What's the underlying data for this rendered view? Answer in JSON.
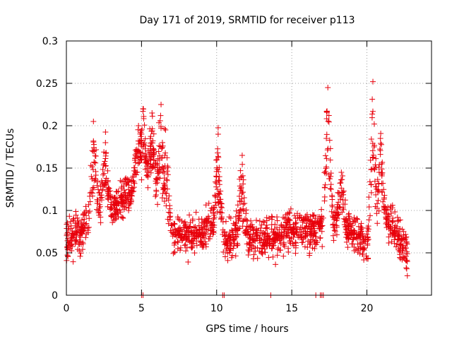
{
  "chart_data": {
    "type": "scatter",
    "title": "Day 171 of 2019, SRMTID for receiver p113",
    "xlabel": "GPS time / hours",
    "ylabel": "SRMTID / TECUs",
    "xlim": [
      0,
      24.3
    ],
    "ylim": [
      0,
      0.3
    ],
    "xticks": [
      0,
      5,
      10,
      15,
      20
    ],
    "xtick_labels": [
      "0",
      "5",
      "10",
      "15",
      "20"
    ],
    "yticks": [
      0,
      0.05,
      0.1,
      0.15,
      0.2,
      0.25,
      0.3
    ],
    "ytick_labels": [
      "0",
      "0.05",
      "0.1",
      "0.15",
      "0.2",
      "0.25",
      "0.3"
    ],
    "grid": true,
    "marker": "+",
    "color": "#e8000b",
    "series": [
      {
        "name": "SRMTID",
        "trend_points": [
          [
            0.0,
            0.065
          ],
          [
            0.5,
            0.07
          ],
          [
            1.0,
            0.075
          ],
          [
            1.5,
            0.085
          ],
          [
            2.0,
            0.1
          ],
          [
            2.5,
            0.11
          ],
          [
            3.0,
            0.1
          ],
          [
            3.5,
            0.11
          ],
          [
            4.0,
            0.12
          ],
          [
            4.5,
            0.13
          ],
          [
            5.0,
            0.13
          ],
          [
            5.5,
            0.14
          ],
          [
            6.0,
            0.12
          ],
          [
            6.5,
            0.08
          ],
          [
            7.0,
            0.075
          ],
          [
            7.5,
            0.07
          ],
          [
            8.0,
            0.07
          ],
          [
            8.5,
            0.075
          ],
          [
            9.0,
            0.07
          ],
          [
            9.5,
            0.085
          ],
          [
            10.0,
            0.08
          ],
          [
            10.5,
            0.07
          ],
          [
            11.0,
            0.065
          ],
          [
            11.5,
            0.07
          ],
          [
            12.0,
            0.07
          ],
          [
            12.5,
            0.065
          ],
          [
            13.0,
            0.065
          ],
          [
            13.5,
            0.07
          ],
          [
            14.0,
            0.07
          ],
          [
            14.5,
            0.075
          ],
          [
            15.0,
            0.075
          ],
          [
            15.5,
            0.08
          ],
          [
            16.0,
            0.075
          ],
          [
            16.5,
            0.075
          ],
          [
            17.0,
            0.085
          ],
          [
            17.5,
            0.09
          ],
          [
            18.0,
            0.085
          ],
          [
            18.5,
            0.08
          ],
          [
            19.0,
            0.075
          ],
          [
            19.5,
            0.065
          ],
          [
            20.0,
            0.06
          ],
          [
            20.5,
            0.08
          ],
          [
            21.0,
            0.095
          ],
          [
            21.5,
            0.085
          ],
          [
            22.0,
            0.07
          ],
          [
            22.5,
            0.055
          ],
          [
            22.7,
            0.05
          ]
        ],
        "spikes": [
          [
            1.8,
            0.205
          ],
          [
            2.6,
            0.18
          ],
          [
            4.8,
            0.2
          ],
          [
            5.1,
            0.22
          ],
          [
            5.7,
            0.215
          ],
          [
            6.3,
            0.225
          ],
          [
            6.6,
            0.195
          ],
          [
            10.1,
            0.19
          ],
          [
            11.7,
            0.165
          ],
          [
            17.4,
            0.245
          ],
          [
            18.3,
            0.145
          ],
          [
            20.4,
            0.252
          ],
          [
            20.9,
            0.185
          ]
        ],
        "zero_points": [
          5.0,
          5.1,
          10.4,
          10.5,
          13.6,
          16.6,
          16.9,
          17.0,
          17.1
        ]
      }
    ]
  }
}
